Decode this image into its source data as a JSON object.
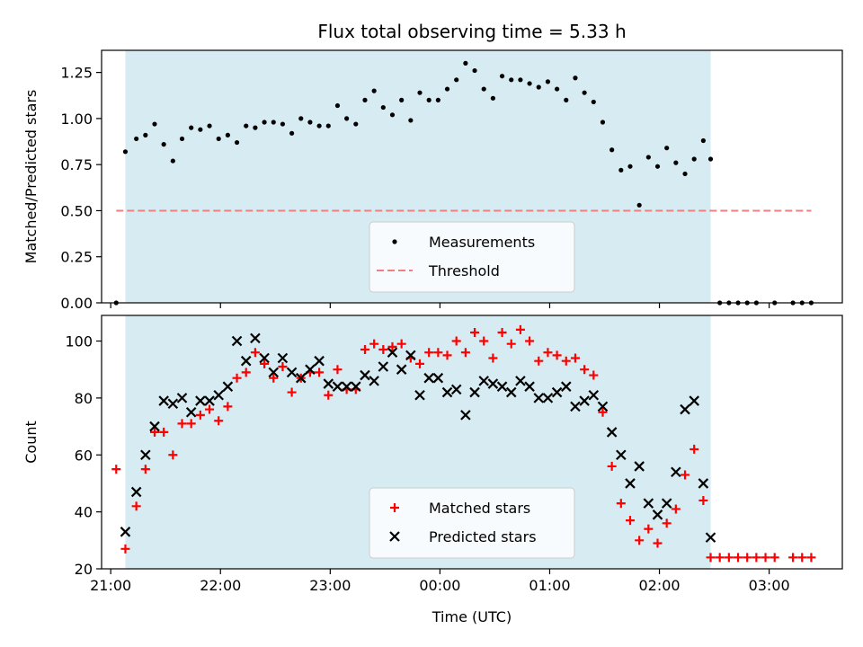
{
  "title": "Flux total observing time = 5.33 h",
  "xlabel": "Time (UTC)",
  "x_ticks": [
    "21:00",
    "22:00",
    "23:00",
    "00:00",
    "01:00",
    "02:00",
    "03:00"
  ],
  "chart_data": [
    {
      "type": "scatter",
      "ylabel": "Matched/Predicted stars",
      "ylim": [
        0,
        1.37
      ],
      "xlim": [
        "20:55",
        "03:40"
      ],
      "y_ticks": [
        "0.00",
        "0.25",
        "0.50",
        "0.75",
        "1.00",
        "1.25"
      ],
      "shaded_span": [
        "21:08",
        "02:28"
      ],
      "shaded_color": "#add8e6",
      "legend_position": "bottom-center",
      "threshold": {
        "name": "Threshold",
        "value": 0.5,
        "x_range": [
          "21:03",
          "03:23"
        ],
        "color": "#f08080"
      },
      "series": [
        {
          "name": "Measurements",
          "marker": "dot",
          "color": "#000000",
          "points": [
            [
              "21:03",
              0.0
            ],
            [
              "21:08",
              0.82
            ],
            [
              "21:14",
              0.89
            ],
            [
              "21:19",
              0.91
            ],
            [
              "21:24",
              0.97
            ],
            [
              "21:29",
              0.86
            ],
            [
              "21:34",
              0.77
            ],
            [
              "21:39",
              0.89
            ],
            [
              "21:44",
              0.95
            ],
            [
              "21:49",
              0.94
            ],
            [
              "21:54",
              0.96
            ],
            [
              "21:59",
              0.89
            ],
            [
              "22:04",
              0.91
            ],
            [
              "22:09",
              0.87
            ],
            [
              "22:14",
              0.96
            ],
            [
              "22:19",
              0.95
            ],
            [
              "22:24",
              0.98
            ],
            [
              "22:29",
              0.98
            ],
            [
              "22:34",
              0.97
            ],
            [
              "22:39",
              0.92
            ],
            [
              "22:44",
              1.0
            ],
            [
              "22:49",
              0.98
            ],
            [
              "22:54",
              0.96
            ],
            [
              "22:59",
              0.96
            ],
            [
              "23:04",
              1.07
            ],
            [
              "23:09",
              1.0
            ],
            [
              "23:14",
              0.97
            ],
            [
              "23:19",
              1.1
            ],
            [
              "23:24",
              1.15
            ],
            [
              "23:29",
              1.06
            ],
            [
              "23:34",
              1.02
            ],
            [
              "23:39",
              1.1
            ],
            [
              "23:44",
              0.99
            ],
            [
              "23:49",
              1.14
            ],
            [
              "23:54",
              1.1
            ],
            [
              "23:59",
              1.1
            ],
            [
              "00:04",
              1.16
            ],
            [
              "00:09",
              1.21
            ],
            [
              "00:14",
              1.3
            ],
            [
              "00:19",
              1.26
            ],
            [
              "00:24",
              1.16
            ],
            [
              "00:29",
              1.11
            ],
            [
              "00:34",
              1.23
            ],
            [
              "00:39",
              1.21
            ],
            [
              "00:44",
              1.21
            ],
            [
              "00:49",
              1.19
            ],
            [
              "00:54",
              1.17
            ],
            [
              "00:59",
              1.2
            ],
            [
              "01:04",
              1.16
            ],
            [
              "01:09",
              1.1
            ],
            [
              "01:14",
              1.22
            ],
            [
              "01:19",
              1.14
            ],
            [
              "01:24",
              1.09
            ],
            [
              "01:29",
              0.98
            ],
            [
              "01:34",
              0.83
            ],
            [
              "01:39",
              0.72
            ],
            [
              "01:44",
              0.74
            ],
            [
              "01:49",
              0.53
            ],
            [
              "01:54",
              0.79
            ],
            [
              "01:59",
              0.74
            ],
            [
              "02:04",
              0.84
            ],
            [
              "02:09",
              0.76
            ],
            [
              "02:14",
              0.7
            ],
            [
              "02:19",
              0.78
            ],
            [
              "02:24",
              0.88
            ],
            [
              "02:28",
              0.78
            ],
            [
              "02:33",
              0.0
            ],
            [
              "02:38",
              0.0
            ],
            [
              "02:43",
              0.0
            ],
            [
              "02:48",
              0.0
            ],
            [
              "02:53",
              0.0
            ],
            [
              "03:03",
              0.0
            ],
            [
              "03:13",
              0.0
            ],
            [
              "03:18",
              0.0
            ],
            [
              "03:23",
              0.0
            ]
          ]
        }
      ]
    },
    {
      "type": "scatter",
      "ylabel": "Count",
      "ylim": [
        20,
        109
      ],
      "xlim": [
        "20:55",
        "03:40"
      ],
      "y_ticks": [
        "20",
        "40",
        "60",
        "80",
        "100"
      ],
      "shaded_span": [
        "21:08",
        "02:28"
      ],
      "shaded_color": "#add8e6",
      "legend_position": "bottom-center",
      "series": [
        {
          "name": "Matched stars",
          "marker": "plus",
          "color": "#ff0000",
          "points": [
            [
              "21:03",
              55
            ],
            [
              "21:08",
              27
            ],
            [
              "21:14",
              42
            ],
            [
              "21:19",
              55
            ],
            [
              "21:24",
              68
            ],
            [
              "21:29",
              68
            ],
            [
              "21:34",
              60
            ],
            [
              "21:39",
              71
            ],
            [
              "21:44",
              71
            ],
            [
              "21:49",
              74
            ],
            [
              "21:54",
              76
            ],
            [
              "21:59",
              72
            ],
            [
              "22:04",
              77
            ],
            [
              "22:09",
              87
            ],
            [
              "22:14",
              89
            ],
            [
              "22:19",
              96
            ],
            [
              "22:24",
              92
            ],
            [
              "22:29",
              87
            ],
            [
              "22:34",
              91
            ],
            [
              "22:39",
              82
            ],
            [
              "22:44",
              87
            ],
            [
              "22:49",
              89
            ],
            [
              "22:54",
              89
            ],
            [
              "22:59",
              81
            ],
            [
              "23:04",
              90
            ],
            [
              "23:09",
              83
            ],
            [
              "23:14",
              83
            ],
            [
              "23:19",
              97
            ],
            [
              "23:24",
              99
            ],
            [
              "23:29",
              97
            ],
            [
              "23:34",
              98
            ],
            [
              "23:39",
              99
            ],
            [
              "23:44",
              94
            ],
            [
              "23:49",
              92
            ],
            [
              "23:54",
              96
            ],
            [
              "23:59",
              96
            ],
            [
              "00:04",
              95
            ],
            [
              "00:09",
              100
            ],
            [
              "00:14",
              96
            ],
            [
              "00:19",
              103
            ],
            [
              "00:24",
              100
            ],
            [
              "00:29",
              94
            ],
            [
              "00:34",
              103
            ],
            [
              "00:39",
              99
            ],
            [
              "00:44",
              104
            ],
            [
              "00:49",
              100
            ],
            [
              "00:54",
              93
            ],
            [
              "00:59",
              96
            ],
            [
              "01:04",
              95
            ],
            [
              "01:09",
              93
            ],
            [
              "01:14",
              94
            ],
            [
              "01:19",
              90
            ],
            [
              "01:24",
              88
            ],
            [
              "01:29",
              75
            ],
            [
              "01:34",
              56
            ],
            [
              "01:39",
              43
            ],
            [
              "01:44",
              37
            ],
            [
              "01:49",
              30
            ],
            [
              "01:54",
              34
            ],
            [
              "01:59",
              29
            ],
            [
              "02:04",
              36
            ],
            [
              "02:09",
              41
            ],
            [
              "02:14",
              53
            ],
            [
              "02:19",
              62
            ],
            [
              "02:24",
              44
            ],
            [
              "02:28",
              24
            ],
            [
              "02:33",
              24
            ],
            [
              "02:38",
              24
            ],
            [
              "02:43",
              24
            ],
            [
              "02:48",
              24
            ],
            [
              "02:53",
              24
            ],
            [
              "02:58",
              24
            ],
            [
              "03:03",
              24
            ],
            [
              "03:13",
              24
            ],
            [
              "03:18",
              24
            ],
            [
              "03:23",
              24
            ]
          ]
        },
        {
          "name": "Predicted stars",
          "marker": "x",
          "color": "#000000",
          "points": [
            [
              "21:08",
              33
            ],
            [
              "21:14",
              47
            ],
            [
              "21:19",
              60
            ],
            [
              "21:24",
              70
            ],
            [
              "21:29",
              79
            ],
            [
              "21:34",
              78
            ],
            [
              "21:39",
              80
            ],
            [
              "21:44",
              75
            ],
            [
              "21:49",
              79
            ],
            [
              "21:54",
              79
            ],
            [
              "21:59",
              81
            ],
            [
              "22:04",
              84
            ],
            [
              "22:09",
              100
            ],
            [
              "22:14",
              93
            ],
            [
              "22:19",
              101
            ],
            [
              "22:24",
              94
            ],
            [
              "22:29",
              89
            ],
            [
              "22:34",
              94
            ],
            [
              "22:39",
              89
            ],
            [
              "22:44",
              87
            ],
            [
              "22:49",
              90
            ],
            [
              "22:54",
              93
            ],
            [
              "22:59",
              85
            ],
            [
              "23:04",
              84
            ],
            [
              "23:09",
              84
            ],
            [
              "23:14",
              84
            ],
            [
              "23:19",
              88
            ],
            [
              "23:24",
              86
            ],
            [
              "23:29",
              91
            ],
            [
              "23:34",
              96
            ],
            [
              "23:39",
              90
            ],
            [
              "23:44",
              95
            ],
            [
              "23:49",
              81
            ],
            [
              "23:54",
              87
            ],
            [
              "23:59",
              87
            ],
            [
              "00:04",
              82
            ],
            [
              "00:09",
              83
            ],
            [
              "00:14",
              74
            ],
            [
              "00:19",
              82
            ],
            [
              "00:24",
              86
            ],
            [
              "00:29",
              85
            ],
            [
              "00:34",
              84
            ],
            [
              "00:39",
              82
            ],
            [
              "00:44",
              86
            ],
            [
              "00:49",
              84
            ],
            [
              "00:54",
              80
            ],
            [
              "00:59",
              80
            ],
            [
              "01:04",
              82
            ],
            [
              "01:09",
              84
            ],
            [
              "01:14",
              77
            ],
            [
              "01:19",
              79
            ],
            [
              "01:24",
              81
            ],
            [
              "01:29",
              77
            ],
            [
              "01:34",
              68
            ],
            [
              "01:39",
              60
            ],
            [
              "01:44",
              50
            ],
            [
              "01:49",
              56
            ],
            [
              "01:54",
              43
            ],
            [
              "01:59",
              39
            ],
            [
              "02:04",
              43
            ],
            [
              "02:09",
              54
            ],
            [
              "02:14",
              76
            ],
            [
              "02:19",
              79
            ],
            [
              "02:24",
              50
            ],
            [
              "02:28",
              31
            ]
          ]
        }
      ]
    }
  ]
}
